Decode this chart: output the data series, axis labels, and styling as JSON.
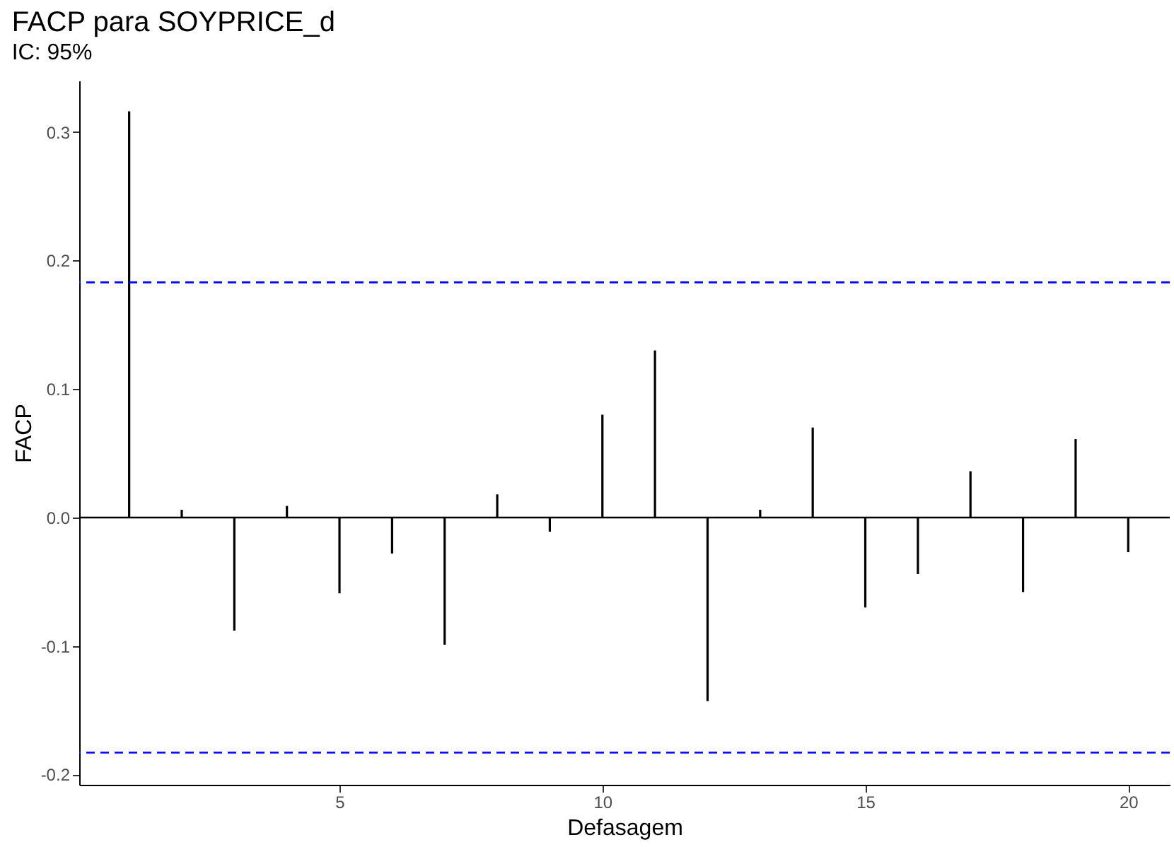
{
  "chart_data": {
    "type": "bar",
    "title": "FACP para SOYPRICE_d",
    "subtitle": "IC: 95%",
    "xlabel": "Defasagem",
    "ylabel": "FACP",
    "x": [
      1,
      2,
      3,
      4,
      5,
      6,
      7,
      8,
      9,
      10,
      11,
      12,
      13,
      14,
      15,
      16,
      17,
      18,
      19,
      20
    ],
    "values": [
      0.316,
      0.006,
      -0.088,
      0.009,
      -0.059,
      -0.028,
      -0.099,
      0.018,
      -0.011,
      0.08,
      0.13,
      -0.143,
      0.006,
      0.07,
      -0.07,
      -0.044,
      0.036,
      -0.058,
      0.061,
      -0.027
    ],
    "color": "#000000",
    "xlim": [
      0.05,
      20.79
    ],
    "xticks": [
      5,
      10,
      15,
      20
    ],
    "ylim": [
      -0.208,
      0.34
    ],
    "yticks": [
      {
        "value": -0.2,
        "label": "-0.2"
      },
      {
        "value": -0.1,
        "label": "-0.1"
      },
      {
        "value": 0,
        "label": "0.0"
      },
      {
        "value": 0.1,
        "label": "0.1"
      },
      {
        "value": 0.2,
        "label": "0.2"
      },
      {
        "value": 0.3,
        "label": "0.3"
      }
    ],
    "ref_lines": [
      {
        "axis": "y",
        "value": 0.183,
        "color": "#0000ff",
        "line_style": "dashed"
      },
      {
        "axis": "y",
        "value": -0.183,
        "color": "#0000ff",
        "line_style": "dashed"
      },
      {
        "axis": "y",
        "value": 0,
        "color": "#000000",
        "line_style": "solid"
      }
    ],
    "grid": false
  }
}
